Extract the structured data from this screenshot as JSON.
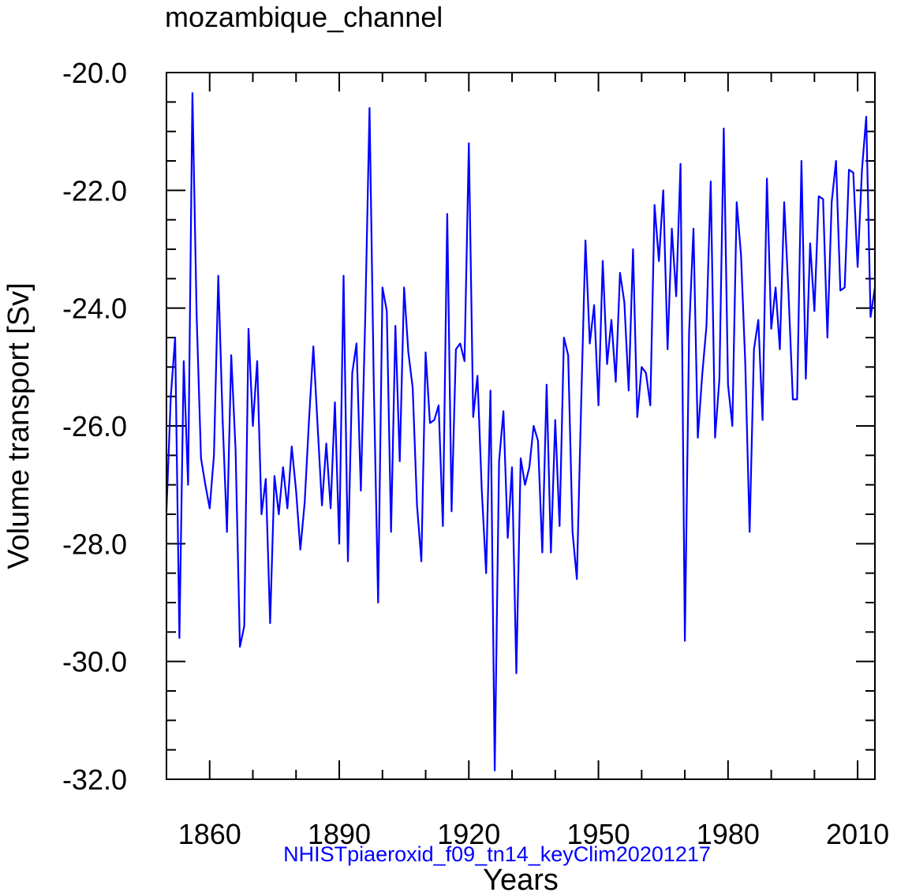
{
  "chart_data": {
    "type": "line",
    "title": "mozambique_channel",
    "xlabel": "Years",
    "ylabel": "Volume transport [Sv]",
    "annotation": "NHISTpiaeroxid_f09_tn14_keyClim20201217",
    "xlim": [
      1850,
      2014
    ],
    "ylim": [
      -32.0,
      -20.0
    ],
    "x_major_ticks": [
      1860,
      1890,
      1920,
      1950,
      1980,
      2010
    ],
    "x_minor_ticks": [
      1850,
      1870,
      1880,
      1900,
      1910,
      1930,
      1940,
      1960,
      1970,
      1990,
      2000
    ],
    "y_major_ticks": [
      -32.0,
      -30.0,
      -28.0,
      -26.0,
      -24.0,
      -22.0,
      -20.0
    ],
    "y_minor_ticks": [
      -31.5,
      -31.0,
      -30.5,
      -29.5,
      -29.0,
      -28.5,
      -27.5,
      -27.0,
      -26.5,
      -25.5,
      -25.0,
      -24.5,
      -23.5,
      -23.0,
      -22.5,
      -21.5,
      -21.0,
      -20.5
    ],
    "series": [
      {
        "name": "NHISTpiaeroxid_f09_tn14_keyClim20201217",
        "color": "#0000ff",
        "x_start": 1850,
        "x_step": 1,
        "values": [
          -27.45,
          -25.5,
          -24.5,
          -29.6,
          -24.9,
          -27.0,
          -20.35,
          -24.15,
          -26.55,
          -27.0,
          -27.4,
          -26.5,
          -23.45,
          -25.9,
          -27.8,
          -24.8,
          -26.4,
          -29.75,
          -29.4,
          -24.35,
          -26.0,
          -24.9,
          -27.5,
          -26.9,
          -29.35,
          -26.85,
          -27.5,
          -26.7,
          -27.4,
          -26.35,
          -27.1,
          -28.1,
          -27.3,
          -25.9,
          -24.65,
          -26.0,
          -27.35,
          -26.3,
          -27.4,
          -25.6,
          -28.0,
          -23.45,
          -28.3,
          -25.1,
          -24.6,
          -27.1,
          -24.2,
          -20.6,
          -25.3,
          -29.0,
          -23.65,
          -24.05,
          -27.8,
          -24.3,
          -26.6,
          -23.65,
          -24.75,
          -25.35,
          -27.35,
          -28.3,
          -24.75,
          -25.95,
          -25.9,
          -25.65,
          -27.7,
          -22.4,
          -27.45,
          -24.7,
          -24.6,
          -24.9,
          -21.2,
          -25.85,
          -25.15,
          -27.1,
          -28.5,
          -25.4,
          -31.85,
          -26.6,
          -25.75,
          -27.9,
          -26.7,
          -30.2,
          -26.55,
          -27.0,
          -26.7,
          -26.0,
          -26.25,
          -28.15,
          -25.3,
          -28.15,
          -25.9,
          -27.7,
          -24.5,
          -24.8,
          -27.8,
          -28.6,
          -25.6,
          -22.85,
          -24.6,
          -23.95,
          -25.65,
          -23.2,
          -24.95,
          -24.2,
          -25.25,
          -23.4,
          -23.9,
          -25.4,
          -23.0,
          -25.85,
          -25.0,
          -25.1,
          -25.65,
          -22.25,
          -23.2,
          -22.0,
          -24.7,
          -22.65,
          -23.8,
          -21.55,
          -29.65,
          -24.4,
          -22.65,
          -26.2,
          -25.15,
          -24.3,
          -21.85,
          -26.2,
          -25.2,
          -20.95,
          -25.3,
          -26.0,
          -22.2,
          -23.1,
          -24.95,
          -27.8,
          -24.7,
          -24.2,
          -25.9,
          -21.8,
          -24.35,
          -23.65,
          -24.7,
          -22.2,
          -23.75,
          -25.55,
          -25.55,
          -21.5,
          -25.2,
          -22.9,
          -24.05,
          -22.1,
          -22.15,
          -24.5,
          -22.2,
          -21.5,
          -23.7,
          -23.65,
          -21.65,
          -21.7,
          -23.3,
          -21.65,
          -20.75,
          -24.15,
          -23.65
        ]
      }
    ]
  }
}
